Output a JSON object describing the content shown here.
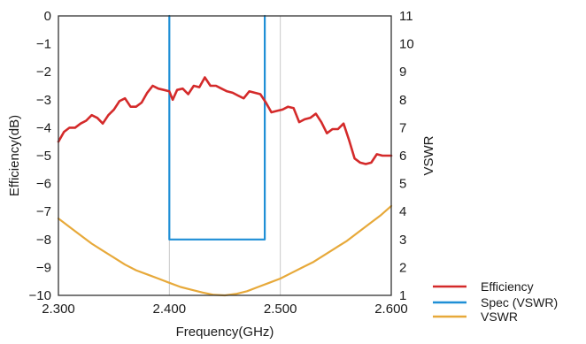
{
  "chart_data": {
    "type": "line",
    "xlabel": "Frequency(GHz)",
    "ylabel_left": "Efficiency(dB)",
    "ylabel_right": "VSWR",
    "xlim": [
      2.3,
      2.6
    ],
    "ylim_left": [
      -10,
      0
    ],
    "ylim_right": [
      1,
      11
    ],
    "x_ticks": [
      2.3,
      2.4,
      2.5,
      2.6
    ],
    "x_tick_labels": [
      "2.300",
      "2.400",
      "2.500",
      "2.600"
    ],
    "y_ticks_left": [
      0,
      -1,
      -2,
      -3,
      -4,
      -5,
      -6,
      -7,
      -8,
      -9,
      -10
    ],
    "y_tick_labels_left": [
      "0",
      "−1",
      "−2",
      "−3",
      "−4",
      "−5",
      "−6",
      "−7",
      "−8",
      "−9",
      "−10"
    ],
    "y_ticks_right": [
      1,
      2,
      3,
      4,
      5,
      6,
      7,
      8,
      9,
      10,
      11
    ],
    "y_tick_labels_right": [
      "1",
      "2",
      "3",
      "4",
      "5",
      "6",
      "7",
      "8",
      "9",
      "10",
      "11"
    ],
    "grid": "vertical at x ticks",
    "legend_position": "bottom-right outside plot",
    "series": [
      {
        "name": "Efficiency",
        "axis": "left",
        "color": "#d42a2a",
        "x": [
          2.3,
          2.305,
          2.31,
          2.315,
          2.32,
          2.325,
          2.33,
          2.335,
          2.34,
          2.345,
          2.35,
          2.355,
          2.36,
          2.365,
          2.37,
          2.375,
          2.38,
          2.385,
          2.39,
          2.395,
          2.4,
          2.403,
          2.407,
          2.412,
          2.417,
          2.422,
          2.427,
          2.432,
          2.437,
          2.442,
          2.447,
          2.452,
          2.457,
          2.462,
          2.467,
          2.472,
          2.477,
          2.482,
          2.487,
          2.492,
          2.497,
          2.502,
          2.507,
          2.512,
          2.517,
          2.522,
          2.527,
          2.532,
          2.537,
          2.542,
          2.547,
          2.552,
          2.557,
          2.562,
          2.567,
          2.572,
          2.577,
          2.582,
          2.587,
          2.592,
          2.596,
          2.6
        ],
        "y": [
          -4.5,
          -4.15,
          -4.0,
          -4.0,
          -3.85,
          -3.75,
          -3.55,
          -3.65,
          -3.85,
          -3.55,
          -3.35,
          -3.05,
          -2.95,
          -3.25,
          -3.25,
          -3.1,
          -2.75,
          -2.5,
          -2.6,
          -2.65,
          -2.7,
          -3.0,
          -2.65,
          -2.6,
          -2.8,
          -2.5,
          -2.55,
          -2.2,
          -2.5,
          -2.5,
          -2.6,
          -2.7,
          -2.75,
          -2.85,
          -2.95,
          -2.7,
          -2.75,
          -2.8,
          -3.1,
          -3.45,
          -3.4,
          -3.35,
          -3.25,
          -3.3,
          -3.8,
          -3.7,
          -3.65,
          -3.5,
          -3.8,
          -4.2,
          -4.05,
          -4.05,
          -3.85,
          -4.45,
          -5.1,
          -5.25,
          -5.3,
          -5.25,
          -4.95,
          -5.0,
          -5.0,
          -5.0
        ]
      },
      {
        "name": "Spec (VSWR)",
        "axis": "right",
        "color": "#1f8fd6",
        "x": [
          2.4,
          2.4,
          2.486,
          2.486
        ],
        "y": [
          11,
          3,
          3,
          11
        ]
      },
      {
        "name": "VSWR",
        "axis": "right",
        "color": "#e7a93a",
        "x": [
          2.3,
          2.31,
          2.32,
          2.33,
          2.34,
          2.35,
          2.36,
          2.37,
          2.38,
          2.39,
          2.4,
          2.41,
          2.42,
          2.43,
          2.44,
          2.45,
          2.46,
          2.47,
          2.48,
          2.49,
          2.5,
          2.51,
          2.52,
          2.53,
          2.54,
          2.55,
          2.56,
          2.57,
          2.58,
          2.59,
          2.6
        ],
        "y": [
          3.75,
          3.45,
          3.15,
          2.85,
          2.6,
          2.35,
          2.1,
          1.9,
          1.75,
          1.6,
          1.45,
          1.3,
          1.2,
          1.1,
          1.02,
          1.0,
          1.05,
          1.15,
          1.3,
          1.45,
          1.6,
          1.8,
          2.0,
          2.2,
          2.45,
          2.7,
          2.95,
          3.25,
          3.55,
          3.85,
          4.2
        ]
      }
    ]
  }
}
